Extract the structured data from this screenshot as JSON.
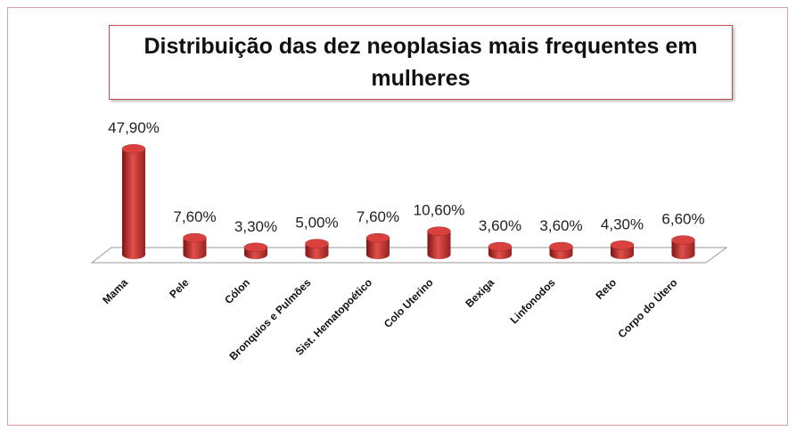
{
  "chart_data": {
    "type": "bar3d",
    "title": "Distribuição das dez neoplasias mais frequentes em mulheres",
    "categories": [
      "Mama",
      "Pele",
      "Cólon",
      "Bronquios e Pulmões",
      "Sist. Hematopoético",
      "Colo Uterino",
      "Bexiga",
      "Linfonodos",
      "Reto",
      "Corpo do Útero"
    ],
    "values": [
      47.9,
      7.6,
      3.3,
      5.0,
      7.6,
      10.6,
      3.6,
      3.6,
      4.3,
      6.6
    ],
    "value_labels": [
      "47,90%",
      "7,60%",
      "3,30%",
      "5,00%",
      "7,60%",
      "10,60%",
      "3,60%",
      "3,60%",
      "4,30%",
      "6,60%"
    ],
    "color": "#c0302e"
  }
}
